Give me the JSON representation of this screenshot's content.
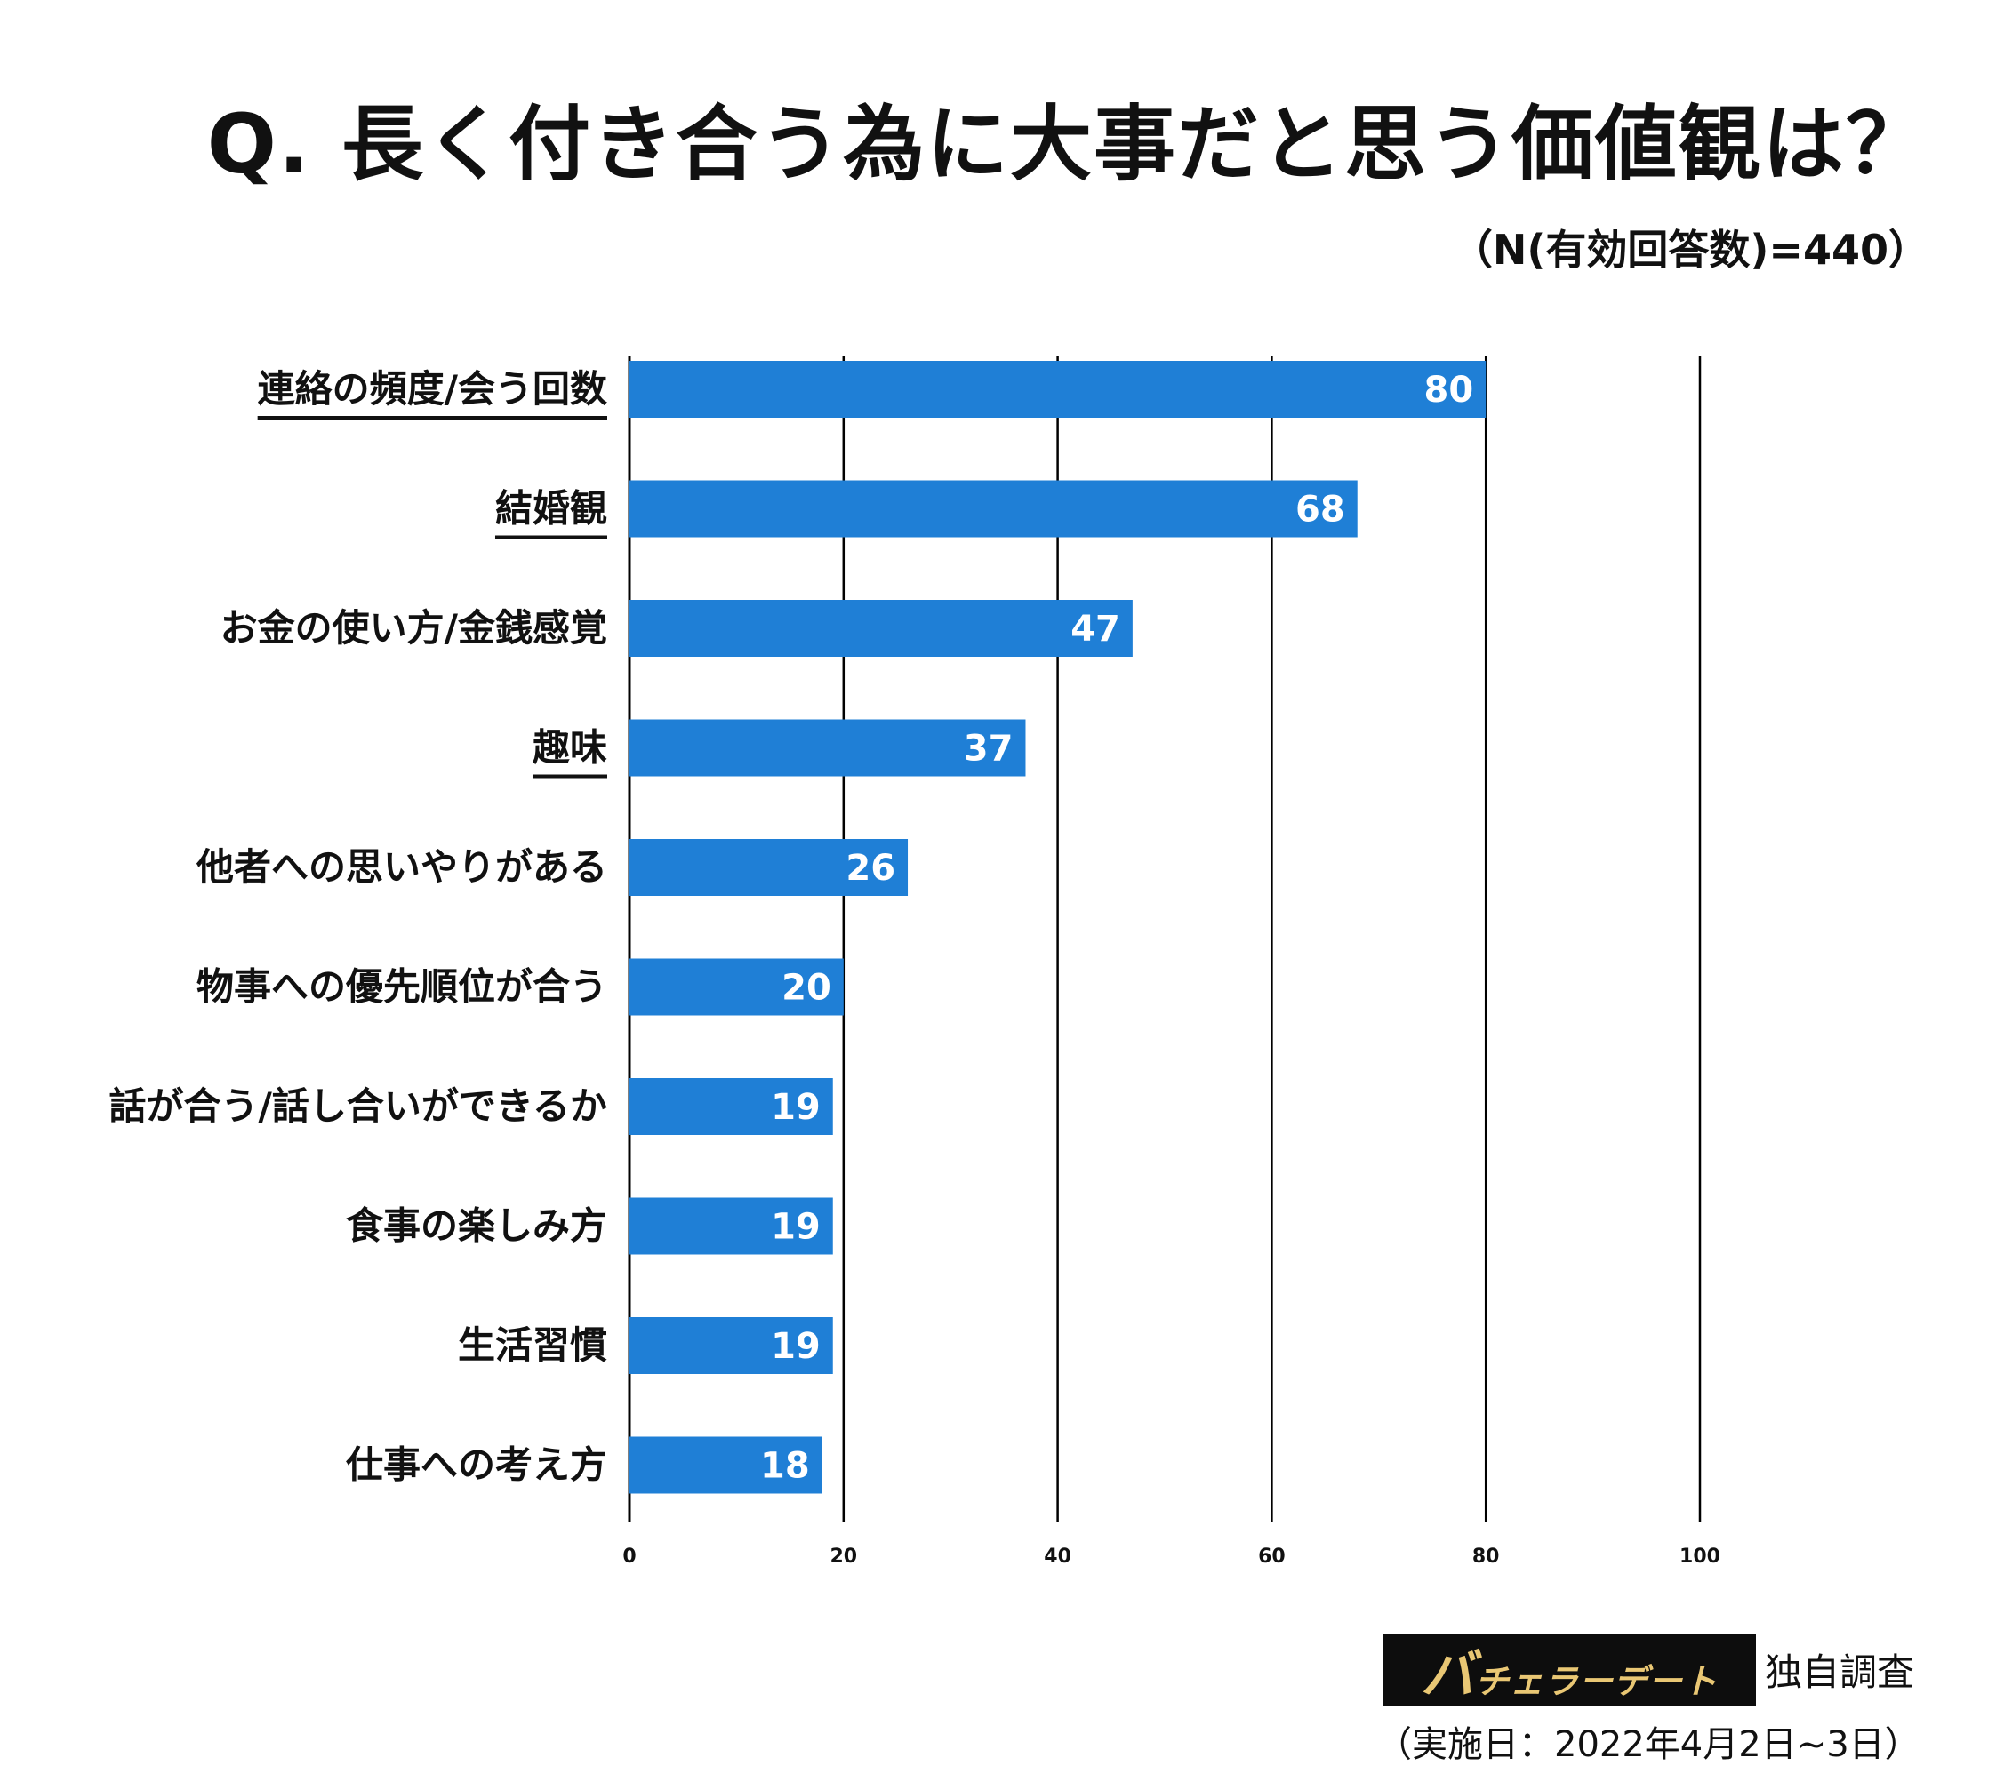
{
  "title": "Q. 長く付き合う為に大事だと思う価値観は？",
  "sample_note": "（N(有効回答数)=440）",
  "footer": {
    "brand_mark": "バ",
    "brand_rest": "チェラーデート",
    "survey": "独自調査",
    "date": "（実施日：2022年4月2日~3日）"
  },
  "colors": {
    "bar": "#1f7fd6",
    "grid": "#000000",
    "text": "#111111"
  },
  "chart_data": {
    "type": "bar",
    "orientation": "horizontal",
    "categories": [
      "連絡の頻度/会う回数",
      "結婚観",
      "お金の使い方/金銭感覚",
      "趣味",
      "他者への思いやりがある",
      "物事への優先順位が合う",
      "話が合う/話し合いができるか",
      "食事の楽しみ方",
      "生活習慣",
      "仕事への考え方"
    ],
    "values": [
      80,
      68,
      47,
      37,
      26,
      20,
      19,
      19,
      19,
      18
    ],
    "underlined": [
      true,
      true,
      false,
      true,
      false,
      false,
      false,
      false,
      false,
      false
    ],
    "xlim": [
      0,
      100
    ],
    "xticks": [
      0,
      20,
      40,
      60,
      80,
      100
    ],
    "grid": "vertical",
    "data_labels": true
  }
}
